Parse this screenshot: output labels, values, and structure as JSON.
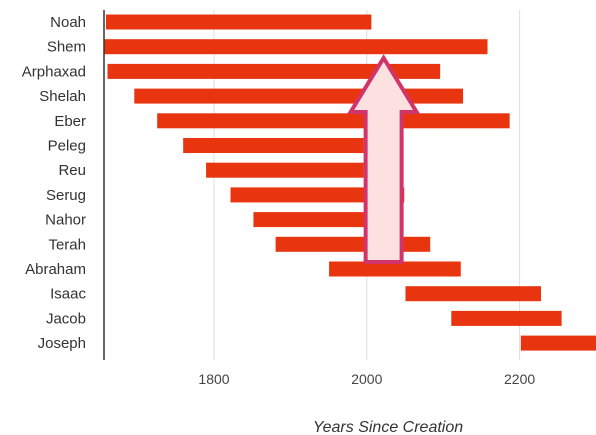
{
  "chart_data": {
    "type": "bar",
    "orientation": "horizontal",
    "subtype": "floating-range",
    "title": "",
    "xlabel": "Years Since Creation",
    "ylabel": "",
    "xlim": [
      1656,
      2300
    ],
    "x_ticks": [
      1800,
      2000,
      2200
    ],
    "grid": true,
    "bar_color": "#e8350f",
    "categories": [
      "Noah",
      "Shem",
      "Arphaxad",
      "Shelah",
      "Eber",
      "Peleg",
      "Reu",
      "Serug",
      "Nahor",
      "Terah",
      "Abraham",
      "Isaac",
      "Jacob",
      "Joseph"
    ],
    "series": [
      {
        "ranges": [
          [
            1656,
            2006
          ],
          [
            1558,
            2158
          ],
          [
            1658,
            2096
          ],
          [
            1693,
            2126
          ],
          [
            1723,
            2187
          ],
          [
            1757,
            1996
          ],
          [
            1787,
            1996
          ],
          [
            1819,
            2049
          ],
          [
            1849,
            1997
          ],
          [
            1878,
            2083
          ],
          [
            1948,
            2123
          ],
          [
            2048,
            2228
          ],
          [
            2108,
            2255
          ],
          [
            2199,
            2309
          ]
        ]
      }
    ],
    "annotation": {
      "shape": "up-arrow",
      "x_center": 2022,
      "fill": "#fde0e0",
      "stroke": "#d1346a"
    }
  }
}
